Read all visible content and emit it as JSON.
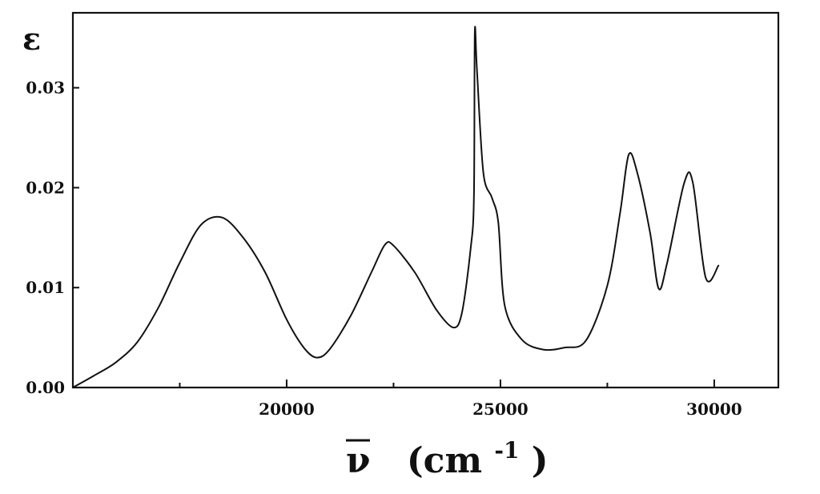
{
  "chart_data": {
    "type": "line",
    "title": "",
    "ylabel": "ε",
    "xlabel": {
      "symbol": "ν",
      "unit_open": "(cm",
      "unit_exp": "-1",
      "unit_close": ")"
    },
    "xlim": [
      15000,
      31500
    ],
    "ylim": [
      0,
      0.0375
    ],
    "grid": false,
    "legend": "none",
    "x_ticks": [
      {
        "value": 20000,
        "label": "20000"
      },
      {
        "value": 25000,
        "label": "25000"
      },
      {
        "value": 30000,
        "label": "30000"
      }
    ],
    "x_minor_ticks": [
      17500,
      22500,
      27500
    ],
    "y_ticks": [
      {
        "value": 0.0,
        "label": "0.00"
      },
      {
        "value": 0.01,
        "label": "0.01"
      },
      {
        "value": 0.02,
        "label": "0.02"
      },
      {
        "value": 0.03,
        "label": "0.03"
      }
    ],
    "series": [
      {
        "color": "#111111",
        "x": [
          15000,
          15500,
          16000,
          16500,
          17000,
          17500,
          18000,
          18500,
          19000,
          19500,
          20000,
          20400,
          20700,
          21000,
          21500,
          22000,
          22300,
          22500,
          23000,
          23500,
          23900,
          24100,
          24300,
          24380,
          24400,
          24450,
          24600,
          24800,
          24950,
          25100,
          25500,
          26000,
          26500,
          27000,
          27500,
          27800,
          28000,
          28200,
          28500,
          28700,
          28900,
          29300,
          29500,
          29800,
          30100
        ],
        "y": [
          0.0,
          0.0012,
          0.0025,
          0.0045,
          0.008,
          0.0125,
          0.0163,
          0.017,
          0.0149,
          0.0115,
          0.0068,
          0.004,
          0.003,
          0.0038,
          0.0072,
          0.0117,
          0.0143,
          0.0142,
          0.0115,
          0.0078,
          0.006,
          0.0075,
          0.0138,
          0.019,
          0.0355,
          0.0318,
          0.0215,
          0.019,
          0.0165,
          0.0082,
          0.0048,
          0.0038,
          0.004,
          0.0047,
          0.0102,
          0.0175,
          0.0233,
          0.0215,
          0.0155,
          0.0099,
          0.0125,
          0.0205,
          0.0205,
          0.011,
          0.0122
        ]
      }
    ]
  }
}
